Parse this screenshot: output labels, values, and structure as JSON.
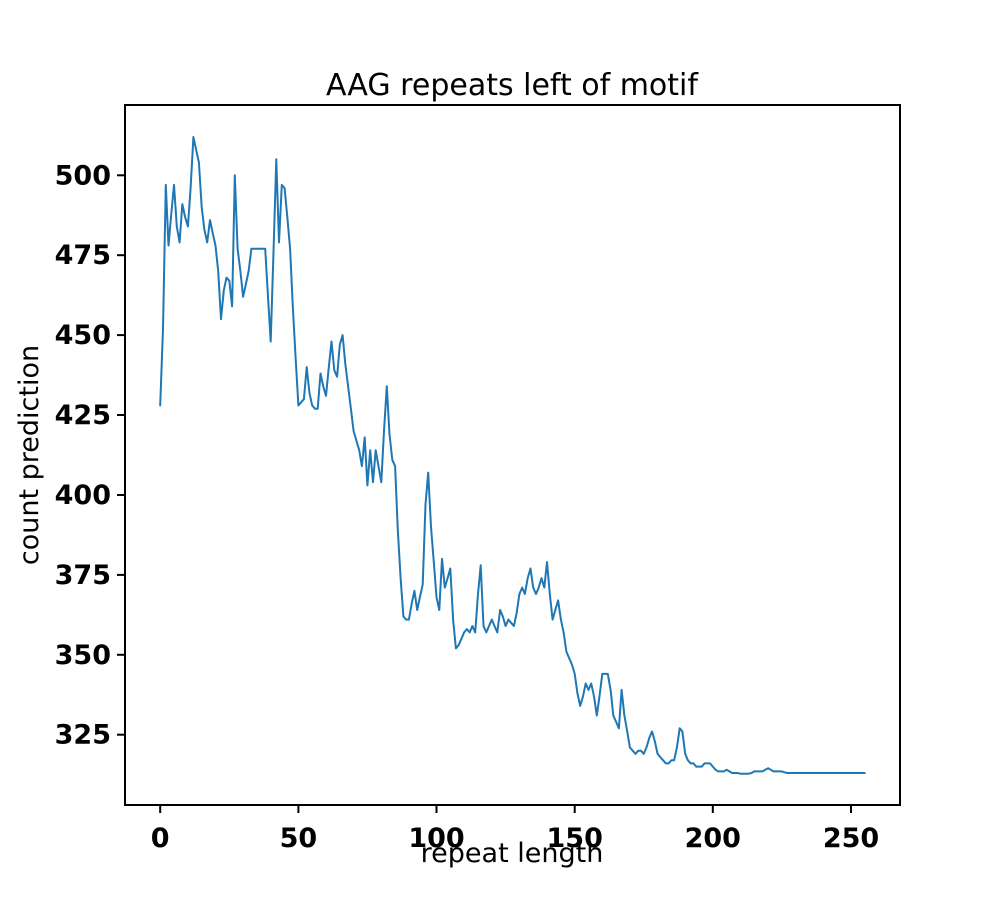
{
  "figure": {
    "background": "#ffffff"
  },
  "chart_data": {
    "type": "line",
    "title": "AAG repeats left of motif",
    "xlabel": "repeat length",
    "ylabel": "count prediction",
    "line_color": "#1f77b4",
    "grid": false,
    "legend": "none",
    "xlim": [
      -12.75,
      267.75
    ],
    "ylim": [
      303,
      522
    ],
    "xticks": [
      0,
      50,
      100,
      150,
      200,
      250
    ],
    "yticks": [
      325,
      350,
      375,
      400,
      425,
      450,
      475,
      500
    ],
    "x_start": 0,
    "x_step": 1,
    "series_name": "count prediction vs repeat length",
    "values": [
      428,
      452,
      497,
      478,
      488,
      497,
      484,
      479,
      491,
      487,
      484,
      496,
      512,
      508,
      504,
      490,
      483,
      479,
      486,
      482,
      478,
      470,
      455,
      464,
      468,
      467,
      459,
      500,
      477,
      470,
      462,
      466,
      470,
      477,
      477,
      477,
      477,
      477,
      477,
      462,
      448,
      476,
      505,
      479,
      497,
      496,
      487,
      477,
      459,
      443,
      428,
      429,
      430,
      440,
      432,
      428,
      427,
      427,
      438,
      434,
      431,
      440,
      448,
      439,
      437,
      447,
      450,
      441,
      434,
      427,
      420,
      417,
      414,
      409,
      418,
      403,
      414,
      404,
      414,
      409,
      404,
      420,
      434,
      419,
      411,
      409,
      389,
      374,
      362,
      361,
      361,
      366,
      370,
      364,
      368,
      372,
      397,
      407,
      390,
      379,
      368,
      364,
      380,
      371,
      374,
      377,
      361,
      352,
      353,
      355,
      357,
      358,
      357,
      359,
      357,
      369,
      378,
      359,
      357,
      359,
      361,
      359,
      357,
      364,
      362,
      359,
      361,
      360,
      359,
      363,
      369,
      371,
      369,
      374,
      377,
      371,
      369,
      371,
      374,
      371,
      379,
      369,
      361,
      364,
      367,
      361,
      357,
      351,
      349,
      347,
      344,
      338,
      334,
      337,
      341,
      339,
      341,
      337,
      331,
      337,
      344,
      344,
      344,
      339,
      331,
      329,
      327,
      339,
      331,
      326,
      321,
      320,
      319,
      320,
      320,
      319,
      321,
      324,
      326,
      323,
      319,
      318,
      317,
      316,
      316,
      317,
      317,
      321,
      327,
      326,
      319,
      317,
      316,
      316,
      315,
      315,
      315,
      316,
      316,
      316,
      315,
      314,
      313.5,
      313.5,
      313.5,
      314,
      313.5,
      313,
      313,
      313,
      312.8,
      312.8,
      312.8,
      312.8,
      313,
      313.5,
      313.5,
      313.5,
      313.5,
      314,
      314.5,
      314,
      313.5,
      313.5,
      313.5,
      313.5,
      313.2,
      313,
      313,
      313,
      313,
      313,
      313,
      313,
      313,
      313,
      313,
      313,
      313,
      313,
      313,
      313,
      313,
      313,
      313,
      313,
      313,
      313,
      313,
      313,
      313,
      313,
      313,
      313,
      313,
      313
    ]
  }
}
